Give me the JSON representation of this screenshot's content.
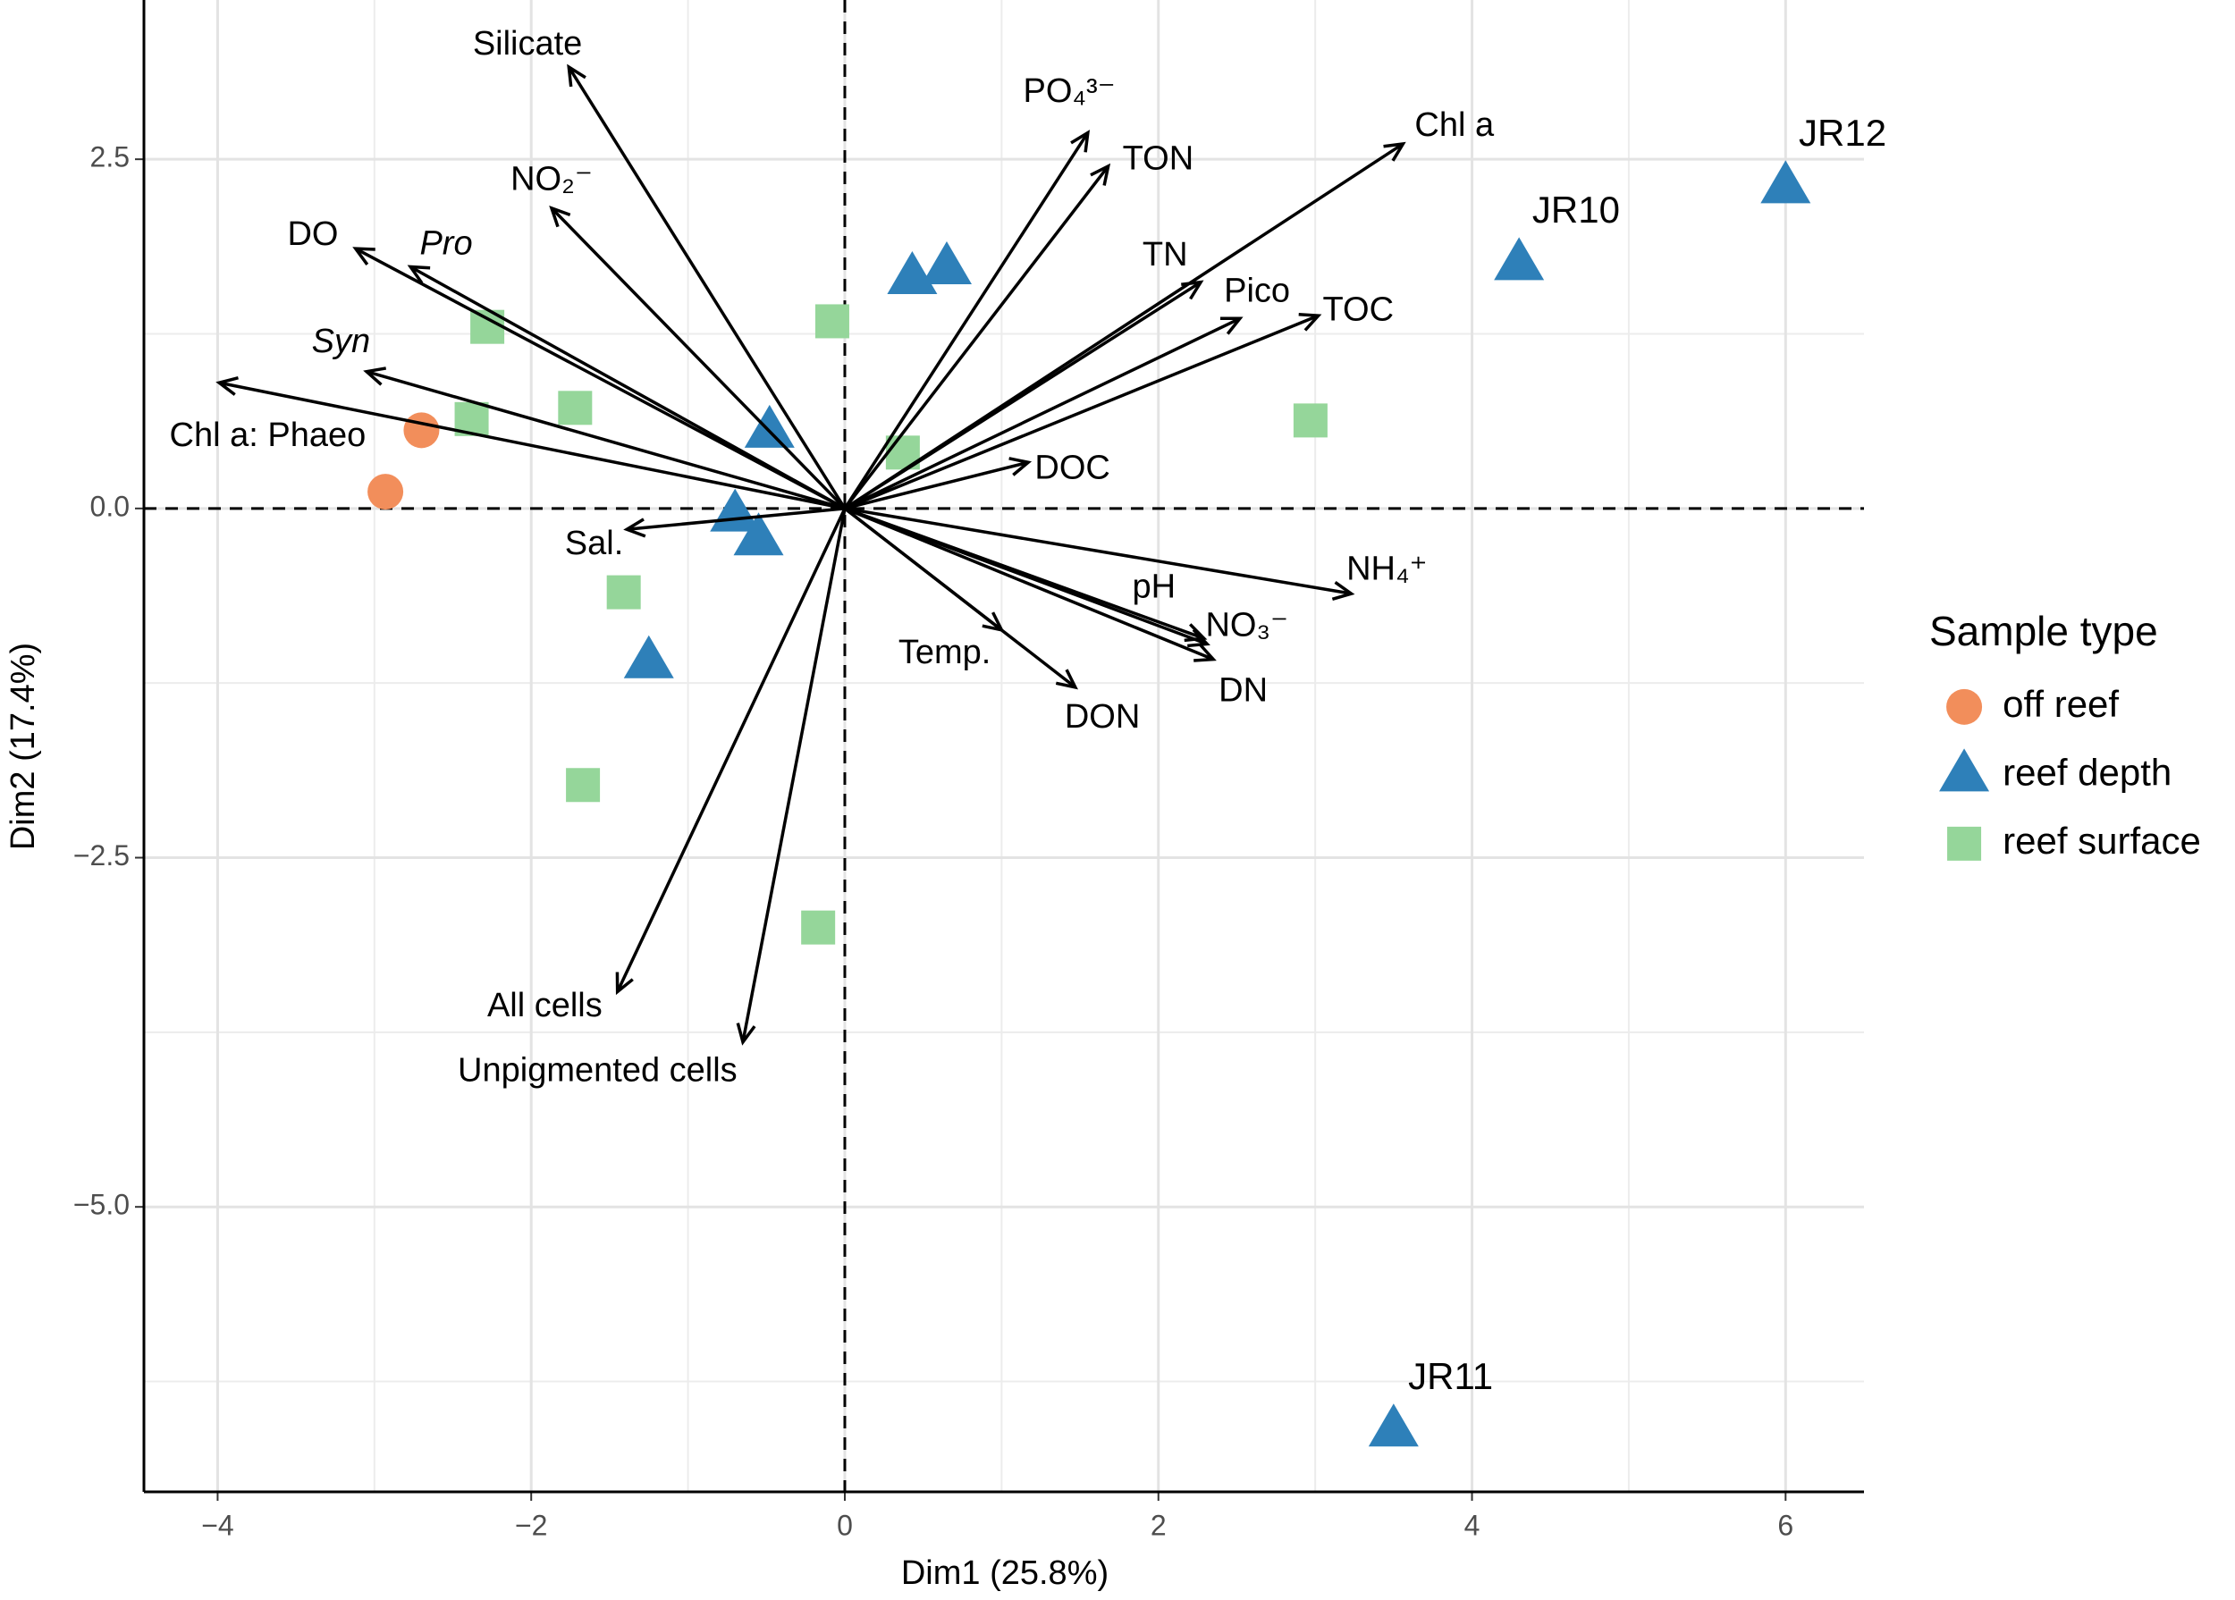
{
  "chart_data": {
    "type": "biplot",
    "x_label": "Dim1 (25.8%)",
    "y_label": "Dim2 (17.4%)",
    "xlim": [
      -4.47,
      6.5
    ],
    "ylim": [
      -7.04,
      3.64
    ],
    "xticks": [
      {
        "value": -4,
        "label": "−4"
      },
      {
        "value": -2,
        "label": "−2"
      },
      0,
      2,
      4,
      6
    ],
    "yticks": [
      2.5,
      {
        "value": 0,
        "label": "0.0"
      },
      {
        "value": -2.5,
        "label": "−2.5"
      },
      {
        "value": -5,
        "label": "−5.0"
      }
    ],
    "x_minor_gridlines": [
      -3,
      -1,
      1,
      3,
      5
    ],
    "y_minor_gridlines": [
      1.25,
      -1.25,
      -3.75,
      -6.25
    ],
    "grid": true,
    "vlines": [
      0
    ],
    "hlines": [
      0
    ],
    "legend_title": "Sample type",
    "legend_position": "right",
    "series": [
      {
        "name": "off reef",
        "color": "#f28e5b",
        "marker": "circle",
        "x": [
          -2.7,
          -2.93
        ],
        "y": [
          0.56,
          0.12
        ],
        "point_labels": [
          null,
          null
        ]
      },
      {
        "name": "reef depth",
        "color": "#2e80b9",
        "marker": "triangle",
        "x": [
          6.0,
          4.3,
          3.5,
          0.43,
          0.65,
          -0.48,
          -0.7,
          -0.55,
          -1.25
        ],
        "y": [
          2.3,
          1.75,
          -6.6,
          1.65,
          1.72,
          0.55,
          -0.05,
          -0.22,
          -1.1
        ],
        "point_labels": [
          "JR12",
          "JR10",
          "JR11",
          null,
          null,
          null,
          null,
          null,
          null
        ]
      },
      {
        "name": "reef surface",
        "color": "#95d69a",
        "marker": "square",
        "x": [
          -2.28,
          -2.38,
          -1.72,
          -0.08,
          0.37,
          2.97,
          -1.41,
          -1.67,
          -0.17
        ],
        "y": [
          1.3,
          0.64,
          0.72,
          1.34,
          0.4,
          0.63,
          -0.6,
          -1.98,
          -3.0
        ],
        "point_labels": [
          null,
          null,
          null,
          null,
          null,
          null,
          null,
          null,
          null
        ]
      }
    ],
    "loadings": [
      {
        "label": "Silicate",
        "x": -1.76,
        "y": 3.16
      },
      {
        "label": "NO₂⁻",
        "x": -1.87,
        "y": 2.15
      },
      {
        "label": "DO",
        "x": -3.12,
        "y": 1.86
      },
      {
        "label": "Pro",
        "x": -2.77,
        "y": 1.73,
        "italic": true
      },
      {
        "label": "Syn",
        "x": -3.05,
        "y": 0.98,
        "italic": true
      },
      {
        "label": "Chl a: Phaeo",
        "x": -3.99,
        "y": 0.9
      },
      {
        "label": "Sal.",
        "x": -1.39,
        "y": -0.15
      },
      {
        "label": "All cells",
        "x": -1.45,
        "y": -3.46
      },
      {
        "label": "Unpigmented cells",
        "x": -0.65,
        "y": -3.82
      },
      {
        "label": "Temp.",
        "x": 1.0,
        "y": -0.87
      },
      {
        "label": "DON",
        "x": 1.47,
        "y": -1.28
      },
      {
        "label": "pH",
        "x": 2.29,
        "y": -0.93
      },
      {
        "label": "NO₃⁻",
        "x": 2.31,
        "y": -0.97
      },
      {
        "label": "DN",
        "x": 2.35,
        "y": -1.08
      },
      {
        "label": "NH₄⁺",
        "x": 3.23,
        "y": -0.61
      },
      {
        "label": "DOC",
        "x": 1.17,
        "y": 0.33
      },
      {
        "label": "TOC",
        "x": 3.02,
        "y": 1.38
      },
      {
        "label": "Pico",
        "x": 2.52,
        "y": 1.36
      },
      {
        "label": "TN",
        "x": 2.27,
        "y": 1.62
      },
      {
        "label": "Chl a",
        "x": 3.56,
        "y": 2.61
      },
      {
        "label": "TON",
        "x": 1.68,
        "y": 2.45
      },
      {
        "label": "PO₄³⁻",
        "x": 1.55,
        "y": 2.69
      }
    ]
  }
}
